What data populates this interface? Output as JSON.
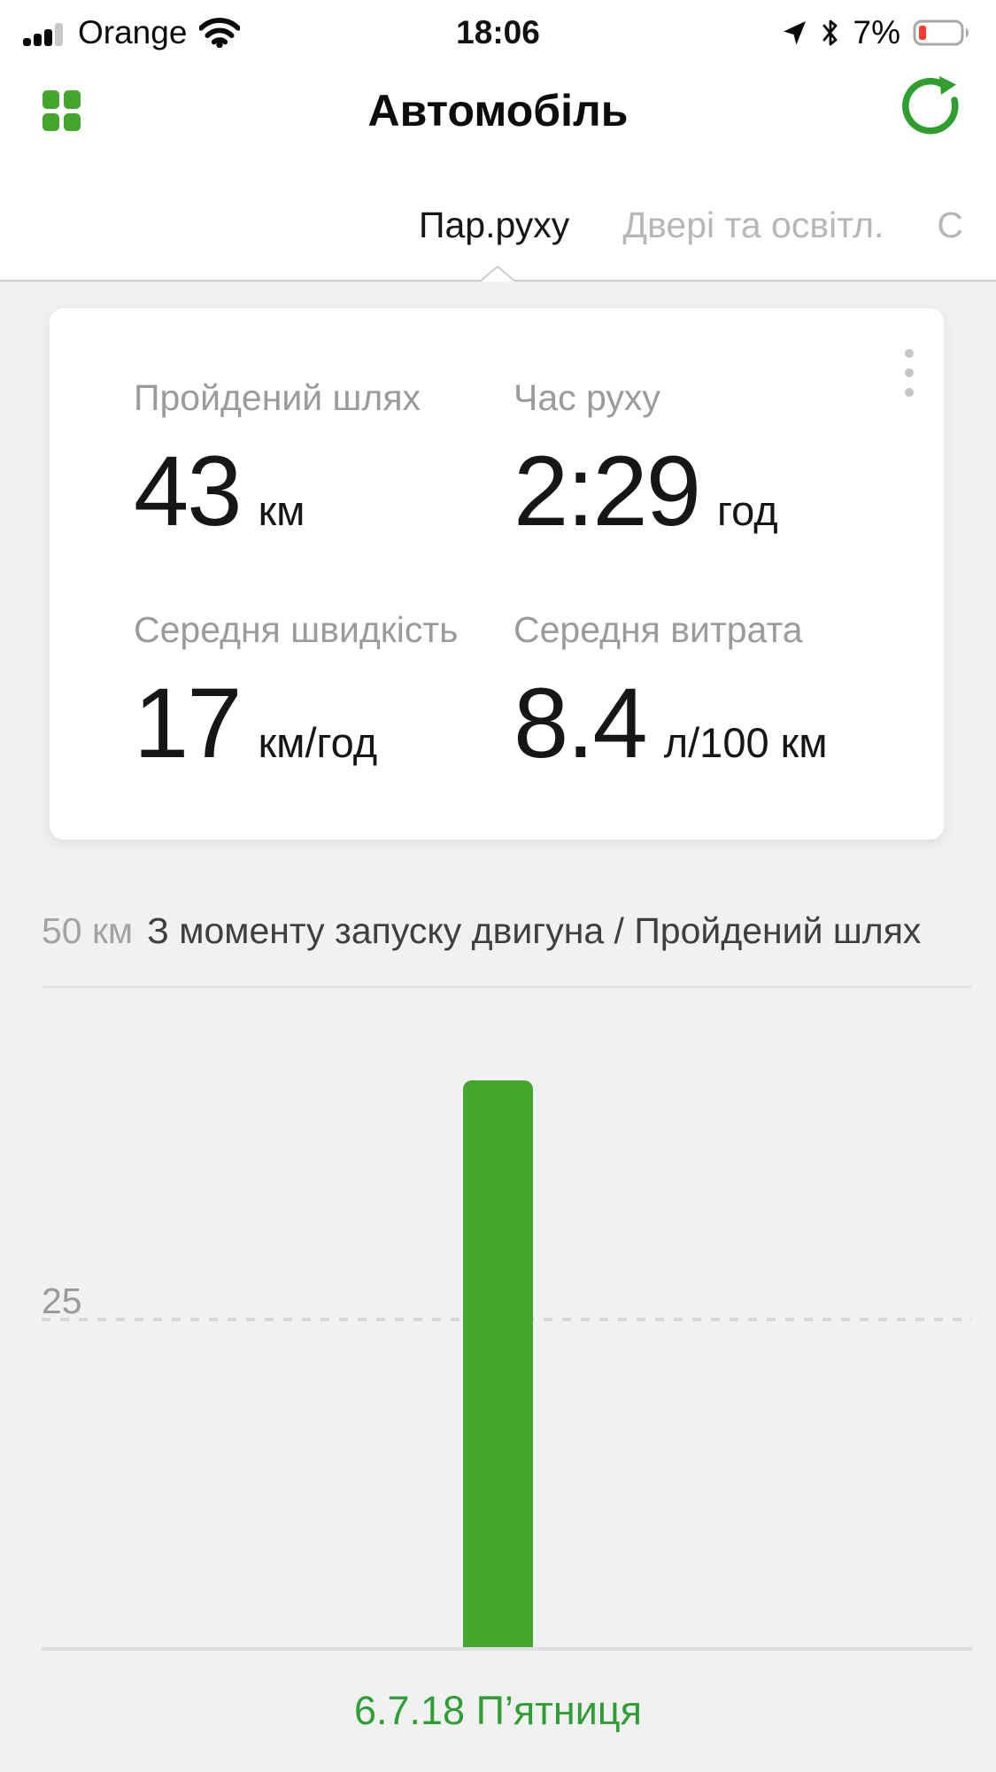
{
  "status_bar": {
    "carrier": "Orange",
    "time": "18:06",
    "battery_percent": "7%",
    "battery_color": "#ff3b30"
  },
  "header": {
    "title": "Автомобіль"
  },
  "tabs": [
    {
      "label": "Пар.руху",
      "active": true
    },
    {
      "label": "Двері та освітл.",
      "active": false
    },
    {
      "label": "С",
      "active": false
    }
  ],
  "stats_card": {
    "menu_icon": "kebab-menu-icon",
    "items": [
      {
        "label": "Пройдений шлях",
        "value": "43",
        "unit": "км"
      },
      {
        "label": "Час руху",
        "value": "2:29",
        "unit": "год"
      },
      {
        "label": "Середня швидкість",
        "value": "17",
        "unit": "км/год"
      },
      {
        "label": "Середня витрата",
        "value": "8.4",
        "unit": "л/100 км"
      }
    ]
  },
  "chart_data": {
    "type": "bar",
    "title": "З моменту запуску двигуна / Пройдений шлях",
    "categories": [
      "6.7.18 П’ятниця"
    ],
    "values": [
      43
    ],
    "ylabel": "км",
    "ylim": [
      0,
      50
    ],
    "ytick_labels": [
      "50 км",
      "25"
    ],
    "grid": "horizontal, 50 solid / 25 dashed / 0 solid baseline",
    "legend": "none",
    "bar_color": "#44a62c",
    "date_color": "#2f9e35"
  },
  "colors": {
    "accent_green": "#44a62c",
    "refresh_green": "#2f9e2f",
    "inactive_tab": "#b7b7b7",
    "content_background": "#f1f1f2"
  }
}
